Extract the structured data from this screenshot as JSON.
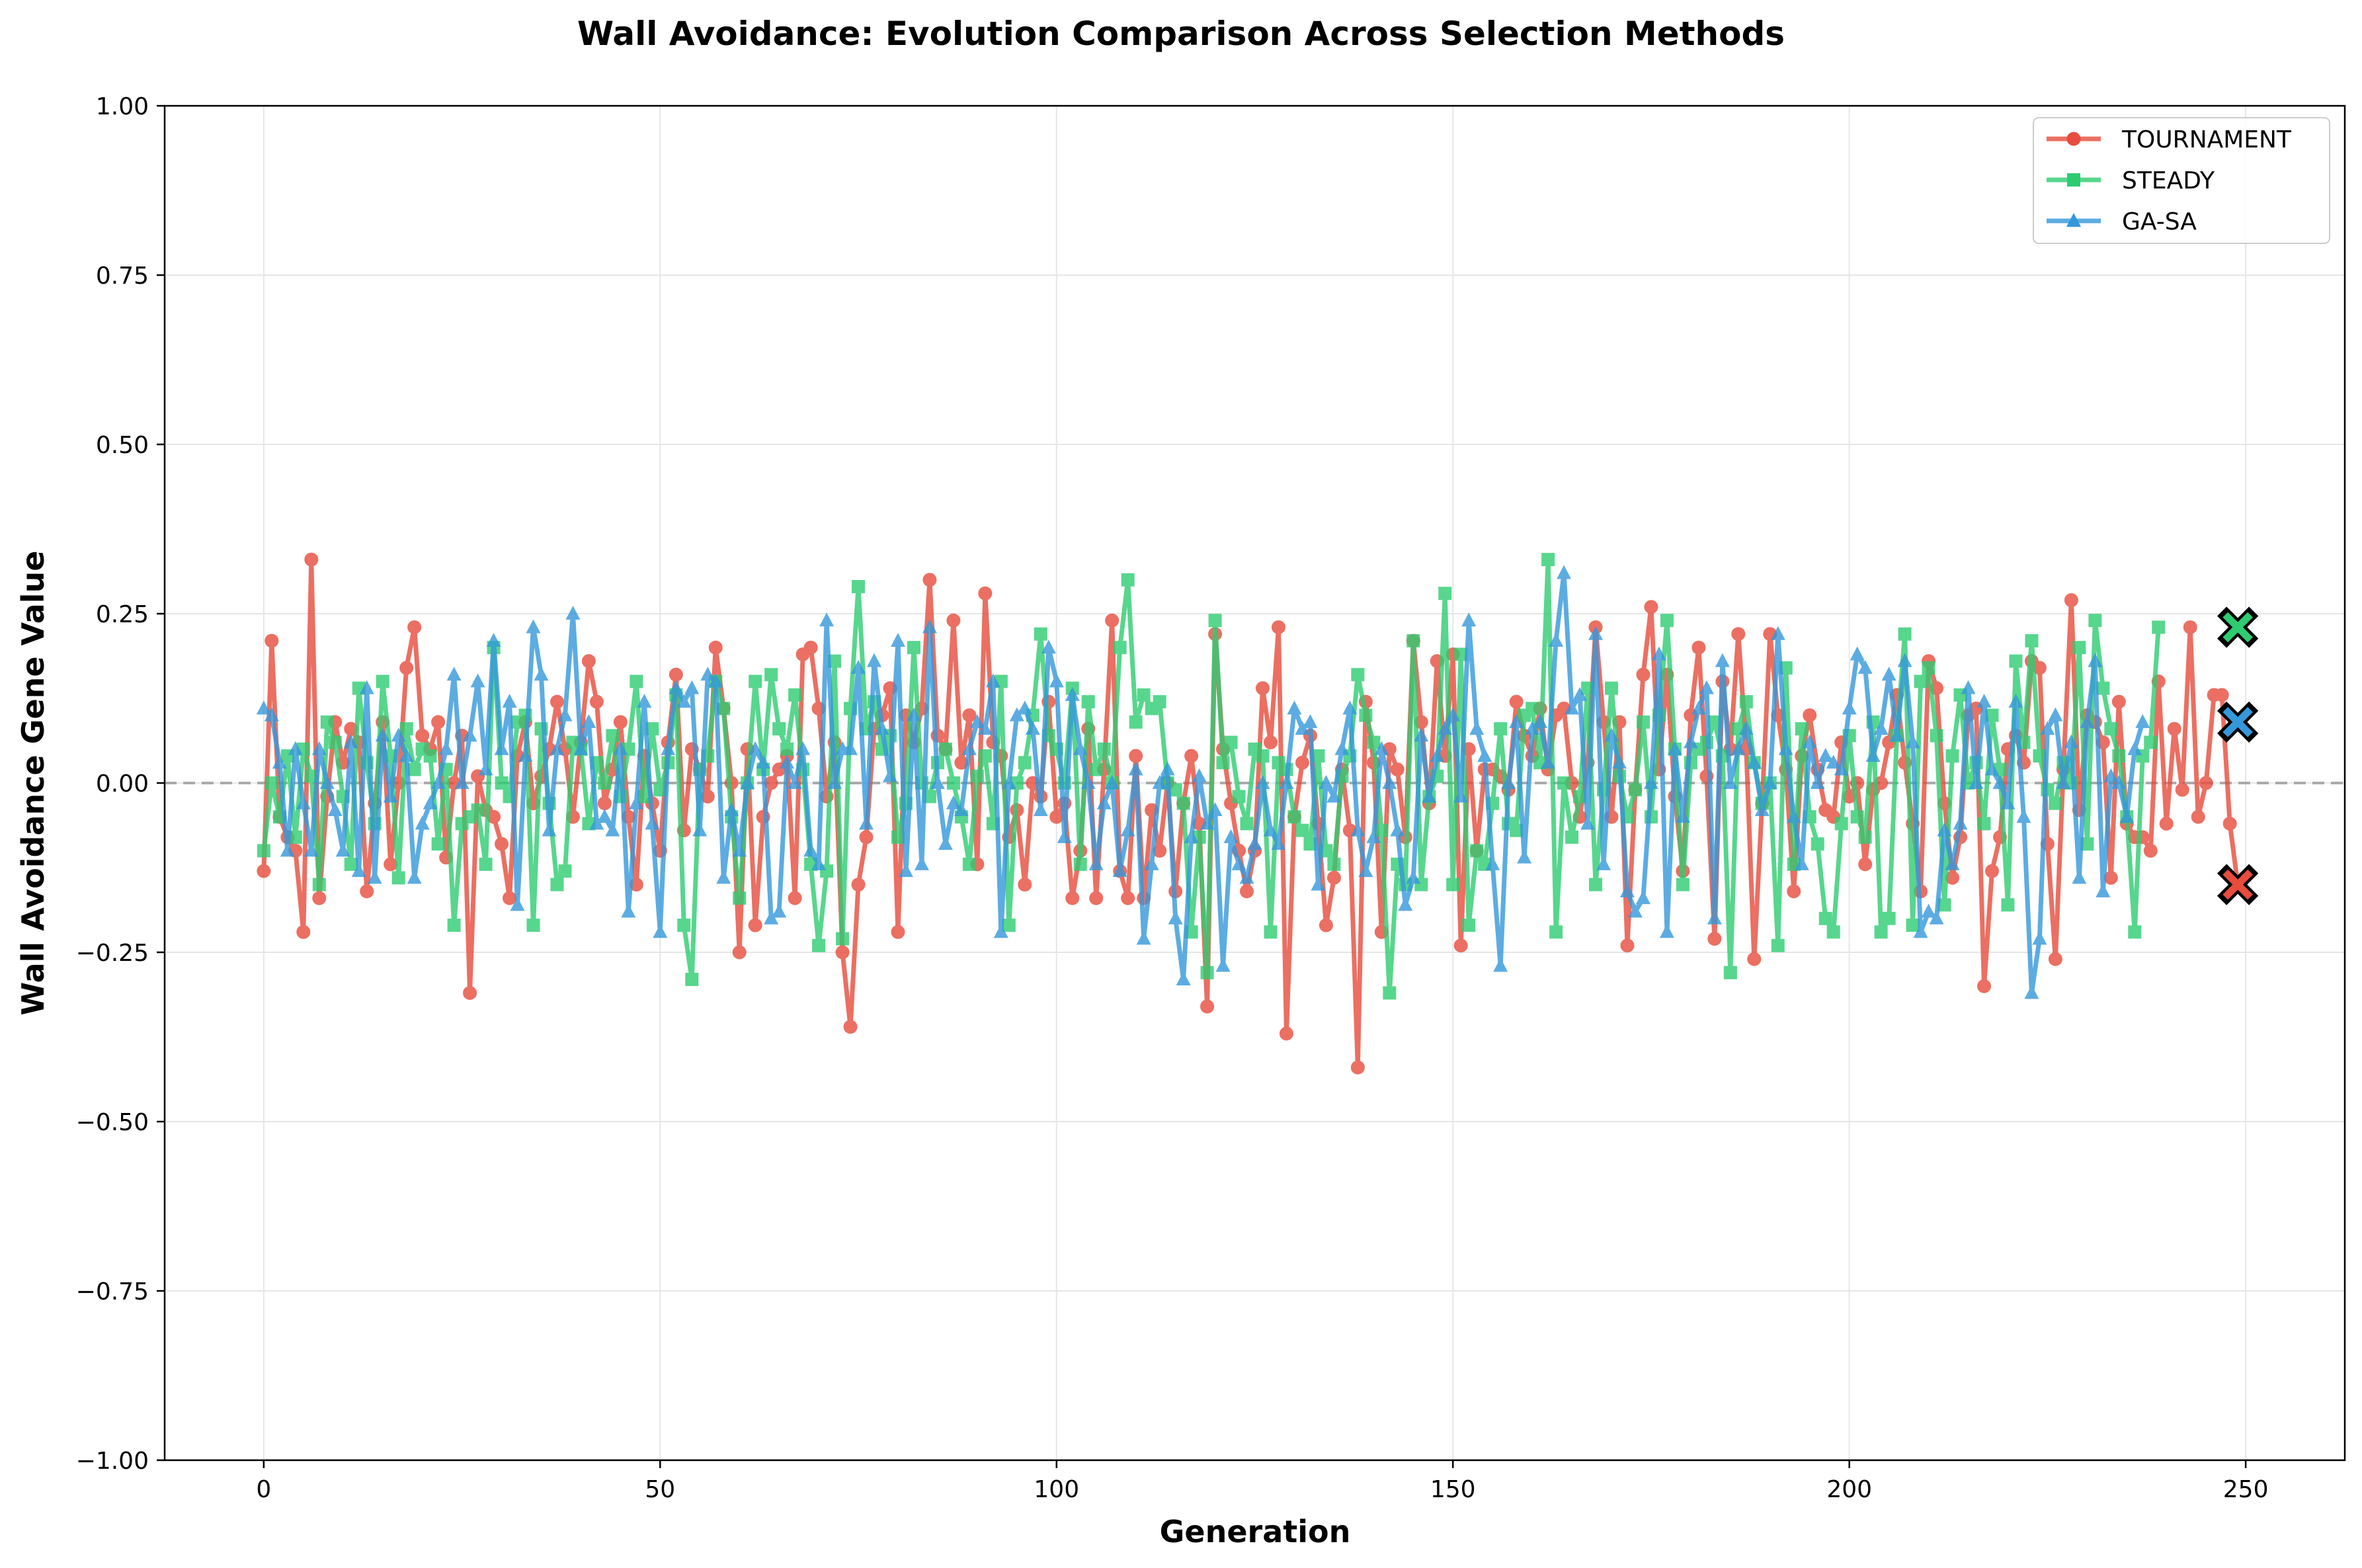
{
  "chart_data": {
    "type": "line",
    "title": "Wall Avoidance: Evolution Comparison Across Selection Methods",
    "xlabel": "Generation",
    "ylabel": "Wall Avoidance Gene Value",
    "xlim": [
      -12.5,
      262.5
    ],
    "ylim": [
      -1.0,
      1.0
    ],
    "x_ticks": [
      0,
      50,
      100,
      150,
      200,
      250
    ],
    "x_tick_labels": [
      "0",
      "50",
      "100",
      "150",
      "200",
      "250"
    ],
    "y_ticks": [
      -1.0,
      -0.75,
      -0.5,
      -0.25,
      0.0,
      0.25,
      0.5,
      0.75,
      1.0
    ],
    "y_tick_labels": [
      "−1.00",
      "−0.75",
      "−0.50",
      "−0.25",
      "0.00",
      "0.25",
      "0.50",
      "0.75",
      "1.00"
    ],
    "grid": true,
    "reference_line": {
      "y": 0.0,
      "style": "dashed",
      "color": "#aaaaaa"
    },
    "legend_position": "top-right",
    "generations": {
      "start": 0,
      "end": 249,
      "step": 1
    },
    "series": [
      {
        "name": "TOURNAMENT",
        "color": "#e74c3c",
        "marker": "circle",
        "values": [
          -0.13,
          0.21,
          -0.05,
          -0.08,
          -0.1,
          -0.22,
          0.33,
          -0.17,
          -0.02,
          0.09,
          0.03,
          0.08,
          0.06,
          -0.16,
          -0.03,
          0.09,
          -0.12,
          0.0,
          0.17,
          0.23,
          0.07,
          0.05,
          0.09,
          -0.11,
          0.0,
          0.07,
          -0.31,
          0.01,
          -0.04,
          -0.05,
          -0.09,
          -0.17,
          0.04,
          0.09,
          -0.03,
          0.01,
          0.05,
          0.12,
          0.05,
          -0.05,
          0.06,
          0.18,
          0.12,
          -0.03,
          0.02,
          0.09,
          -0.05,
          -0.15,
          0.04,
          -0.03,
          -0.1,
          0.06,
          0.16,
          -0.07,
          0.05,
          0.02,
          -0.02,
          0.2,
          0.11,
          0.0,
          -0.25,
          0.05,
          -0.21,
          -0.05,
          0.0,
          0.02,
          0.04,
          -0.17,
          0.19,
          0.2,
          0.11,
          -0.02,
          0.06,
          -0.25,
          -0.36,
          -0.15,
          -0.08,
          0.08,
          0.1,
          0.14,
          -0.22,
          0.1,
          0.06,
          0.11,
          0.3,
          0.07,
          0.05,
          0.24,
          0.03,
          0.1,
          -0.12,
          0.28,
          0.06,
          0.04,
          -0.08,
          -0.04,
          -0.15,
          0.0,
          -0.02,
          0.12,
          -0.05,
          -0.03,
          -0.17,
          -0.1,
          0.08,
          -0.17,
          0.02,
          0.24,
          -0.13,
          -0.17,
          0.04,
          -0.17,
          -0.04,
          -0.1,
          0.0,
          -0.16,
          -0.03,
          0.04,
          -0.06,
          -0.33,
          0.22,
          0.05,
          -0.03,
          -0.1,
          -0.16,
          -0.1,
          0.14,
          0.06,
          0.23,
          -0.37,
          -0.05,
          0.03,
          0.07,
          -0.06,
          -0.21,
          -0.14,
          0.02,
          -0.07,
          -0.42,
          0.12,
          0.03,
          -0.22,
          0.05,
          0.02,
          -0.08,
          0.21,
          0.09,
          -0.03,
          0.18,
          0.04,
          0.19,
          -0.24,
          0.05,
          -0.1,
          0.02,
          0.02,
          0.01,
          -0.01,
          0.12,
          0.07,
          0.04,
          0.11,
          0.02,
          0.1,
          0.11,
          0.0,
          -0.05,
          0.03,
          0.23,
          0.09,
          -0.05,
          0.09,
          -0.24,
          -0.01,
          0.16,
          0.26,
          0.02,
          0.16,
          -0.02,
          -0.13,
          0.1,
          0.2,
          0.01,
          -0.23,
          0.15,
          0.05,
          0.22,
          0.05,
          -0.26,
          -0.03,
          0.22,
          0.1,
          0.02,
          -0.16,
          0.04,
          0.1,
          0.02,
          -0.04,
          -0.05,
          0.06,
          -0.02,
          0.0,
          -0.12,
          -0.01,
          0.0,
          0.06,
          0.13,
          0.03,
          -0.06,
          -0.16,
          0.18,
          0.14,
          -0.03,
          -0.14,
          -0.08,
          0.1,
          0.11,
          -0.3,
          -0.13,
          -0.08,
          0.05,
          0.07,
          0.03,
          0.18,
          0.17,
          -0.09,
          -0.26,
          0.02,
          0.27,
          -0.04,
          0.1,
          0.09,
          0.06,
          -0.14,
          0.12,
          -0.06,
          -0.08,
          -0.08,
          -0.1,
          0.15,
          -0.06,
          0.08,
          -0.01,
          0.23,
          -0.05,
          0.0,
          0.13,
          0.13,
          -0.06,
          -0.15
        ]
      },
      {
        "name": "STEADY",
        "color": "#2ecc71",
        "marker": "square",
        "values": [
          -0.1,
          0.0,
          -0.05,
          0.04,
          -0.08,
          0.05,
          0.01,
          -0.15,
          0.09,
          0.06,
          -0.02,
          -0.12,
          0.14,
          0.03,
          -0.06,
          0.15,
          0.04,
          -0.14,
          0.08,
          0.02,
          0.05,
          0.04,
          -0.09,
          0.02,
          -0.21,
          -0.06,
          -0.05,
          -0.04,
          -0.12,
          0.2,
          0.0,
          -0.02,
          0.09,
          0.1,
          -0.21,
          0.08,
          -0.03,
          -0.15,
          -0.13,
          0.06,
          0.05,
          -0.06,
          0.03,
          0.0,
          0.07,
          -0.02,
          0.05,
          0.15,
          -0.02,
          0.08,
          -0.01,
          0.03,
          0.13,
          -0.21,
          -0.29,
          0.02,
          0.04,
          0.15,
          0.11,
          -0.05,
          -0.17,
          0.0,
          0.15,
          0.02,
          0.16,
          0.08,
          0.05,
          0.13,
          0.02,
          -0.12,
          -0.24,
          -0.13,
          0.18,
          -0.23,
          0.11,
          0.29,
          0.08,
          0.12,
          0.05,
          0.07,
          -0.08,
          -0.03,
          0.2,
          0.0,
          -0.02,
          0.03,
          0.05,
          0.0,
          -0.05,
          -0.12,
          0.01,
          0.04,
          -0.06,
          0.15,
          -0.21,
          0.0,
          0.03,
          0.1,
          0.22,
          0.07,
          0.05,
          0.0,
          0.14,
          -0.12,
          0.12,
          0.02,
          0.05,
          0.0,
          0.2,
          0.3,
          0.09,
          0.13,
          0.11,
          0.12,
          0.0,
          -0.01,
          -0.03,
          -0.22,
          -0.08,
          -0.28,
          0.24,
          0.03,
          0.06,
          -0.02,
          -0.06,
          0.05,
          0.04,
          -0.22,
          0.03,
          0.02,
          -0.05,
          -0.07,
          -0.09,
          0.04,
          -0.1,
          -0.12,
          0.01,
          0.04,
          0.16,
          0.1,
          0.06,
          -0.07,
          -0.31,
          -0.12,
          -0.15,
          0.21,
          -0.15,
          -0.02,
          0.01,
          0.28,
          -0.15,
          0.19,
          -0.21,
          -0.1,
          -0.12,
          -0.03,
          0.08,
          -0.06,
          -0.07,
          0.1,
          0.11,
          0.03,
          0.33,
          -0.22,
          0.0,
          -0.08,
          -0.02,
          0.14,
          -0.15,
          -0.01,
          0.14,
          0.01,
          -0.05,
          -0.01,
          0.09,
          -0.05,
          0.1,
          0.24,
          0.05,
          -0.15,
          0.03,
          0.05,
          0.06,
          0.09,
          0.04,
          -0.28,
          0.08,
          0.12,
          0.03,
          -0.03,
          0.0,
          -0.24,
          0.17,
          -0.12,
          0.08,
          -0.05,
          -0.09,
          -0.2,
          -0.22,
          -0.06,
          0.07,
          -0.05,
          -0.08,
          0.09,
          -0.22,
          -0.2,
          0.07,
          0.22,
          -0.21,
          0.15,
          0.17,
          0.07,
          -0.18,
          0.04,
          0.13,
          0.0,
          0.03,
          -0.06,
          0.1,
          0.02,
          -0.18,
          0.18,
          0.06,
          0.21,
          0.04,
          -0.01,
          -0.03,
          0.03,
          0.0,
          0.2,
          -0.09,
          0.24,
          0.14,
          0.08,
          0.04,
          -0.05,
          -0.22,
          0.04,
          0.06,
          0.23
        ]
      },
      {
        "name": "GA-SA",
        "color": "#3498db",
        "marker": "triangle",
        "values": [
          0.11,
          0.1,
          0.03,
          -0.1,
          0.05,
          -0.03,
          -0.1,
          0.05,
          0.0,
          -0.04,
          -0.1,
          0.06,
          -0.13,
          0.14,
          -0.14,
          0.07,
          -0.02,
          0.07,
          0.04,
          -0.14,
          -0.06,
          -0.03,
          0.0,
          0.05,
          0.16,
          0.0,
          0.07,
          0.15,
          0.02,
          0.21,
          0.05,
          0.12,
          -0.18,
          0.04,
          0.23,
          0.16,
          -0.07,
          0.05,
          0.1,
          0.25,
          0.05,
          0.09,
          -0.06,
          -0.05,
          -0.07,
          0.05,
          -0.19,
          -0.03,
          0.12,
          -0.06,
          -0.22,
          0.05,
          0.14,
          0.12,
          0.14,
          -0.07,
          0.16,
          0.15,
          -0.14,
          -0.04,
          -0.1,
          0.0,
          0.05,
          0.03,
          -0.2,
          -0.19,
          0.03,
          0.0,
          0.05,
          -0.1,
          -0.12,
          0.24,
          0.0,
          0.05,
          0.05,
          0.17,
          -0.06,
          0.18,
          0.08,
          0.01,
          0.21,
          -0.13,
          0.1,
          -0.12,
          0.23,
          0.0,
          -0.09,
          -0.03,
          -0.04,
          0.05,
          0.09,
          0.08,
          0.15,
          -0.22,
          0.0,
          0.1,
          0.11,
          0.08,
          -0.04,
          0.2,
          0.15,
          -0.08,
          0.13,
          0.05,
          0.0,
          -0.12,
          -0.03,
          0.0,
          -0.13,
          -0.07,
          0.02,
          -0.23,
          -0.12,
          0.0,
          0.02,
          -0.2,
          -0.29,
          -0.08,
          0.01,
          -0.06,
          -0.04,
          -0.27,
          -0.08,
          -0.12,
          -0.14,
          -0.09,
          0.0,
          -0.07,
          -0.09,
          0.0,
          0.11,
          0.08,
          0.09,
          -0.15,
          0.0,
          -0.02,
          0.05,
          0.11,
          -0.07,
          -0.13,
          -0.08,
          0.05,
          0.0,
          -0.07,
          -0.18,
          -0.14,
          0.07,
          -0.02,
          0.04,
          0.08,
          0.1,
          -0.02,
          0.24,
          0.08,
          0.04,
          -0.12,
          -0.27,
          0.0,
          0.09,
          -0.11,
          0.08,
          0.09,
          0.03,
          0.21,
          0.31,
          0.11,
          0.13,
          -0.06,
          0.22,
          -0.12,
          0.07,
          0.03,
          -0.16,
          -0.19,
          -0.17,
          0.0,
          0.19,
          -0.22,
          0.05,
          -0.05,
          0.06,
          0.11,
          0.14,
          -0.2,
          0.18,
          0.0,
          0.05,
          0.08,
          0.03,
          -0.04,
          0.0,
          0.22,
          0.05,
          -0.05,
          -0.12,
          0.06,
          0.0,
          0.04,
          0.03,
          0.02,
          0.11,
          0.19,
          0.17,
          0.04,
          0.08,
          0.16,
          0.07,
          0.18,
          0.06,
          -0.22,
          -0.19,
          -0.2,
          -0.07,
          -0.12,
          -0.06,
          0.14,
          0.0,
          0.12,
          0.02,
          0.0,
          -0.03,
          0.12,
          -0.05,
          -0.31,
          -0.23,
          0.08,
          0.1,
          0.0,
          0.06,
          -0.14,
          0.09,
          0.18,
          -0.16,
          0.01,
          0.0,
          -0.05,
          0.05,
          0.09
        ]
      }
    ],
    "final_markers": [
      {
        "series": "TOURNAMENT",
        "x": 249,
        "y": -0.15,
        "symbol": "x"
      },
      {
        "series": "STEADY",
        "x": 249,
        "y": 0.23,
        "symbol": "x"
      },
      {
        "series": "GA-SA",
        "x": 249,
        "y": 0.09,
        "symbol": "x"
      }
    ]
  }
}
